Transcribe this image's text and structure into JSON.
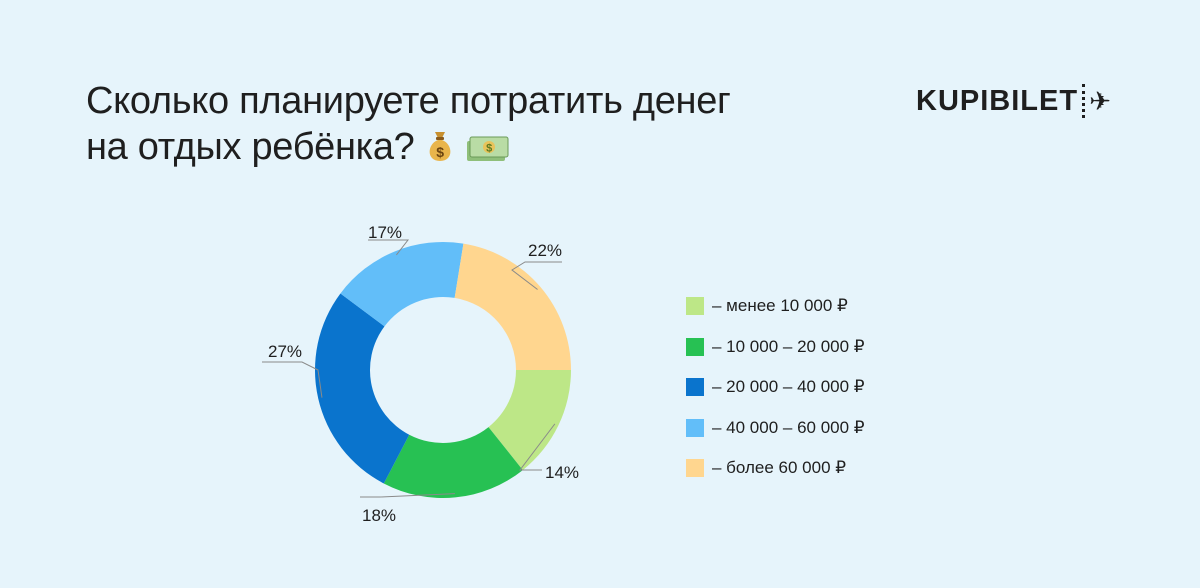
{
  "header": {
    "title_line1": "Сколько планируете потратить денег",
    "title_line2": "на отдых ребёнка?",
    "emoji_icons": [
      "money-bag-icon",
      "dollar-banknote-icon"
    ]
  },
  "logo": {
    "text": "KUPIBILET",
    "icon": "airplane-icon"
  },
  "chart_data": {
    "type": "pie",
    "variant": "donut",
    "title": "Сколько планируете потратить денег на отдых ребёнка?",
    "unit": "%",
    "legend_position": "right",
    "categories": [
      "– менее 10 000 ₽",
      "– 10 000 – 20 000 ₽",
      "– 20 000 – 40 000 ₽",
      "– 40 000 – 60 000 ₽",
      "– более 60 000 ₽"
    ],
    "values": [
      14,
      18,
      27,
      17,
      22
    ],
    "labels": [
      "14%",
      "18%",
      "27%",
      "17%",
      "22%"
    ],
    "colors": [
      "#bde787",
      "#27c153",
      "#0a74cd",
      "#62bef9",
      "#ffd68f"
    ]
  }
}
